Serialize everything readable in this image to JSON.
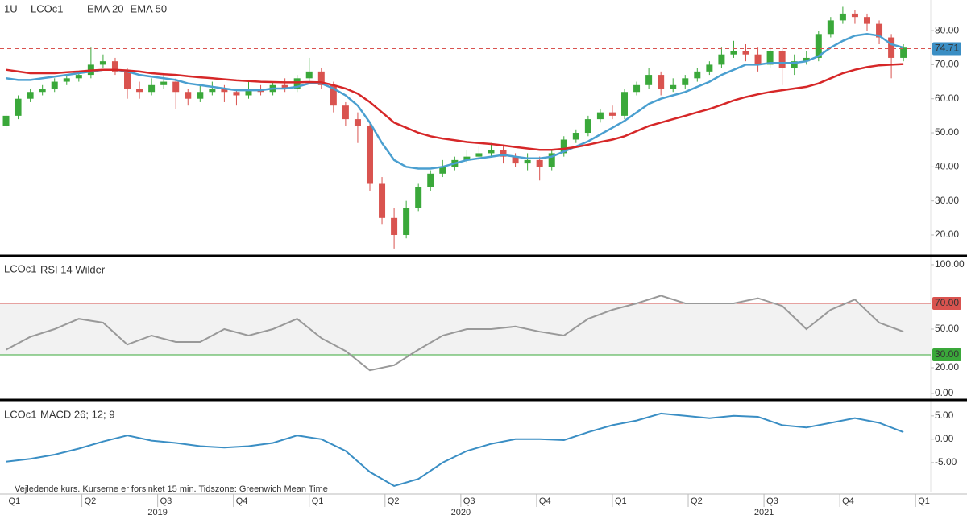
{
  "chart_data": [
    {
      "type": "candlestick",
      "interval": "1U",
      "title": "LCOc1",
      "x": [
        2019,
        2019.04,
        2019.08,
        2019.12,
        2019.16,
        2019.2,
        2019.24,
        2019.28,
        2019.32,
        2019.36,
        2019.4,
        2019.44,
        2019.48,
        2019.52,
        2019.56,
        2019.6,
        2019.64,
        2019.68,
        2019.72,
        2019.76,
        2019.8,
        2019.84,
        2019.88,
        2019.92,
        2019.96,
        2020,
        2020.04,
        2020.08,
        2020.12,
        2020.16,
        2020.2,
        2020.24,
        2020.28,
        2020.32,
        2020.36,
        2020.4,
        2020.44,
        2020.48,
        2020.52,
        2020.56,
        2020.6,
        2020.64,
        2020.68,
        2020.72,
        2020.76,
        2020.8,
        2020.84,
        2020.88,
        2020.92,
        2020.96,
        2021,
        2021.04,
        2021.08,
        2021.12,
        2021.16,
        2021.2,
        2021.24,
        2021.28,
        2021.32,
        2021.36,
        2021.4,
        2021.44,
        2021.48,
        2021.52,
        2021.56,
        2021.6,
        2021.64,
        2021.68,
        2021.72,
        2021.76,
        2021.8,
        2021.84,
        2021.88,
        2021.92,
        2021.96
      ],
      "open": [
        52,
        55,
        60,
        62,
        63,
        65,
        66,
        67,
        70,
        71,
        68,
        63,
        62,
        64,
        65,
        62,
        60,
        62,
        63,
        62,
        61,
        63,
        62,
        64,
        63,
        66,
        68,
        64,
        58,
        54,
        52,
        35,
        25,
        20,
        28,
        34,
        38,
        40,
        42,
        43,
        44,
        45,
        43,
        41,
        42,
        40,
        44,
        48,
        50,
        54,
        56,
        55,
        62,
        64,
        67,
        63,
        64,
        66,
        68,
        70,
        73,
        74,
        73,
        70,
        74,
        69,
        71,
        72,
        79,
        83,
        85,
        84,
        82,
        78,
        72
      ],
      "high": [
        56,
        61,
        63,
        64,
        66,
        67,
        68,
        75,
        73,
        72,
        69,
        65,
        66,
        67,
        66,
        63,
        64,
        65,
        64,
        63,
        65,
        64,
        65,
        66,
        67,
        72,
        69,
        65,
        59,
        56,
        53,
        37,
        28,
        30,
        35,
        39,
        42,
        43,
        45,
        46,
        47,
        46,
        44,
        44,
        43,
        45,
        49,
        51,
        55,
        57,
        58,
        63,
        65,
        69,
        68,
        66,
        67,
        69,
        71,
        75,
        77,
        76,
        75,
        75,
        75,
        73,
        74,
        80,
        84,
        87,
        86,
        85,
        83,
        79,
        76
      ],
      "low": [
        51,
        54,
        59,
        61,
        62,
        64,
        65,
        66,
        69,
        67,
        60,
        60,
        61,
        63,
        57,
        58,
        59,
        61,
        59,
        58,
        60,
        61,
        61,
        62,
        62,
        65,
        63,
        56,
        52,
        47,
        33,
        23,
        16,
        19,
        27,
        33,
        37,
        39,
        41,
        42,
        43,
        41,
        40,
        39,
        36,
        39,
        43,
        47,
        49,
        53,
        54,
        54,
        61,
        63,
        61,
        62,
        63,
        65,
        67,
        69,
        72,
        71,
        68,
        69,
        64,
        67,
        70,
        71,
        78,
        82,
        82,
        80,
        76,
        66,
        71
      ],
      "close": [
        55,
        60,
        62,
        63,
        65,
        66,
        67,
        70,
        71,
        68,
        63,
        62,
        64,
        65,
        62,
        60,
        62,
        63,
        62,
        61,
        63,
        62,
        64,
        63,
        66,
        68,
        64,
        58,
        54,
        52,
        35,
        25,
        20,
        28,
        34,
        38,
        40,
        42,
        43,
        44,
        45,
        43,
        41,
        42,
        40,
        44,
        48,
        50,
        54,
        56,
        55,
        62,
        64,
        67,
        63,
        64,
        66,
        68,
        70,
        73,
        74,
        73,
        70,
        74,
        69,
        71,
        72,
        79,
        83,
        85,
        84,
        82,
        78,
        72,
        75
      ],
      "up_color": "#3aa83a",
      "down_color": "#d9534f",
      "series": [
        {
          "name": "EMA 20",
          "color": "#4a9fd0",
          "values": [
            66,
            65.5,
            65.5,
            66,
            66.5,
            67,
            67.5,
            68,
            68.5,
            68.5,
            68,
            67,
            66.5,
            66,
            65.5,
            64.5,
            64,
            63.5,
            63,
            62.5,
            62.5,
            62.5,
            63,
            63,
            63.5,
            64.5,
            64.5,
            63,
            61,
            58,
            53,
            47,
            42,
            40,
            39.5,
            39.5,
            40,
            41,
            42,
            42.5,
            43,
            43.5,
            43,
            42.5,
            42.5,
            43,
            44.5,
            46,
            47.5,
            49.5,
            51.5,
            53.5,
            56,
            58.5,
            60,
            61,
            62,
            63.5,
            65,
            67,
            68.5,
            70,
            70,
            70.5,
            70.5,
            70.5,
            71,
            72.5,
            75,
            77,
            78.5,
            79,
            78.5,
            76,
            75
          ]
        },
        {
          "name": "EMA 50",
          "color": "#d62728",
          "values": [
            68.5,
            68,
            67.5,
            67.5,
            67.5,
            67.8,
            68,
            68.3,
            68.5,
            68.5,
            68.3,
            68,
            67.5,
            67.2,
            67,
            66.6,
            66.3,
            66,
            65.7,
            65.4,
            65.2,
            65,
            64.9,
            64.8,
            64.8,
            64.9,
            64.8,
            64,
            63,
            61.5,
            59,
            56,
            53,
            51.5,
            50,
            49,
            48.3,
            47.8,
            47.3,
            47,
            46.7,
            46.3,
            45.8,
            45.4,
            45,
            45,
            45.3,
            45.8,
            46.5,
            47.3,
            48,
            49,
            50.5,
            52,
            53,
            54,
            55,
            56,
            57,
            58.2,
            59.5,
            60.5,
            61.3,
            62,
            62.5,
            63,
            63.5,
            64.5,
            66,
            67.5,
            68.5,
            69.3,
            69.8,
            70,
            70.2
          ]
        }
      ],
      "last_price": 74.71,
      "last_price_color": "#d9534f",
      "last_price_box": "#3a8ec4",
      "xlim": [
        2018.98,
        2022.05
      ],
      "ylim": [
        13.85,
        89
      ],
      "yticks": [
        {
          "value": 20,
          "label": "20.00"
        },
        {
          "value": 30,
          "label": "30.00"
        },
        {
          "value": 40,
          "label": "40.00"
        },
        {
          "value": 50,
          "label": "50.00"
        },
        {
          "value": 60,
          "label": "60.00"
        },
        {
          "value": 70,
          "label": "70.00"
        },
        {
          "value": 80,
          "label": "80.00"
        }
      ]
    },
    {
      "type": "line",
      "title": "LCOc1",
      "x": [
        2019,
        2019.08,
        2019.16,
        2019.24,
        2019.32,
        2019.4,
        2019.48,
        2019.56,
        2019.64,
        2019.72,
        2019.8,
        2019.88,
        2019.96,
        2020.04,
        2020.12,
        2020.2,
        2020.28,
        2020.36,
        2020.44,
        2020.52,
        2020.6,
        2020.68,
        2020.76,
        2020.84,
        2020.92,
        2021,
        2021.08,
        2021.16,
        2021.24,
        2021.32,
        2021.4,
        2021.48,
        2021.56,
        2021.64,
        2021.72,
        2021.8,
        2021.88,
        2021.96
      ],
      "series": [
        {
          "name": "RSI 14 Wilder",
          "color": "#999999",
          "values": [
            34,
            44,
            50,
            58,
            55,
            38,
            45,
            40,
            40,
            50,
            45,
            50,
            58,
            43,
            33,
            18,
            22,
            34,
            45,
            50,
            50,
            52,
            48,
            45,
            58,
            65,
            70,
            76,
            70,
            70,
            70,
            74,
            68,
            50,
            65,
            73,
            55,
            48
          ]
        }
      ],
      "levels": [
        {
          "value": 70,
          "label": "70.00",
          "color": "#d9534f"
        },
        {
          "value": 30,
          "label": "30.00",
          "color": "#3aa83a"
        }
      ],
      "band_color": "#f2f2f2",
      "xlim": [
        2018.98,
        2022.05
      ],
      "ylim": [
        -5,
        105.6
      ],
      "yticks": [
        {
          "value": 0,
          "label": "0.00"
        },
        {
          "value": 20,
          "label": "20.00"
        },
        {
          "value": 50,
          "label": "50.00"
        },
        {
          "value": 100,
          "label": "100.00"
        }
      ]
    },
    {
      "type": "line",
      "title": "LCOc1",
      "x": [
        2019,
        2019.08,
        2019.16,
        2019.24,
        2019.32,
        2019.4,
        2019.48,
        2019.56,
        2019.64,
        2019.72,
        2019.8,
        2019.88,
        2019.96,
        2020.04,
        2020.12,
        2020.2,
        2020.28,
        2020.36,
        2020.44,
        2020.52,
        2020.6,
        2020.68,
        2020.76,
        2020.84,
        2020.92,
        2021,
        2021.08,
        2021.16,
        2021.24,
        2021.32,
        2021.4,
        2021.48,
        2021.56,
        2021.64,
        2021.72,
        2021.8,
        2021.88,
        2021.96
      ],
      "series": [
        {
          "name": "MACD 26; 12; 9",
          "color": "#3a8ec4",
          "values": [
            -4.8,
            -4.2,
            -3.3,
            -2,
            -0.5,
            0.8,
            -0.3,
            -0.8,
            -1.5,
            -1.8,
            -1.5,
            -0.8,
            0.8,
            0,
            -2.5,
            -7,
            -10,
            -8.5,
            -5,
            -2.5,
            -1,
            0,
            0,
            -0.2,
            1.5,
            3,
            4,
            5.5,
            5,
            4.5,
            5,
            4.8,
            3,
            2.5,
            3.5,
            4.5,
            3.5,
            1.5
          ]
        }
      ],
      "xlim": [
        2018.98,
        2022.05
      ],
      "ylim": [
        -11.4,
        7.9
      ],
      "yticks": [
        {
          "value": -5,
          "label": "-5.00"
        },
        {
          "value": 0,
          "label": "0.00"
        },
        {
          "value": 5,
          "label": "5.00"
        }
      ],
      "xticks": [
        {
          "value": 2019,
          "label": "Q1"
        },
        {
          "value": 2019.25,
          "label": "Q2"
        },
        {
          "value": 2019.5,
          "label": "Q3"
        },
        {
          "value": 2019.75,
          "label": "Q4"
        },
        {
          "value": 2020,
          "label": "Q1"
        },
        {
          "value": 2020.25,
          "label": "Q2"
        },
        {
          "value": 2020.5,
          "label": "Q3"
        },
        {
          "value": 2020.75,
          "label": "Q4"
        },
        {
          "value": 2021,
          "label": "Q1"
        },
        {
          "value": 2021.25,
          "label": "Q2"
        },
        {
          "value": 2021.5,
          "label": "Q3"
        },
        {
          "value": 2021.75,
          "label": "Q4"
        },
        {
          "value": 2022,
          "label": "Q1"
        }
      ],
      "year_labels": [
        {
          "value": 2019.5,
          "label": "2019"
        },
        {
          "value": 2020.5,
          "label": "2020"
        },
        {
          "value": 2021.5,
          "label": "2021"
        }
      ]
    }
  ],
  "footnote": "Vejledende kurs. Kurserne er forsinket 15 min.    Tidszone: Greenwich Mean Time"
}
